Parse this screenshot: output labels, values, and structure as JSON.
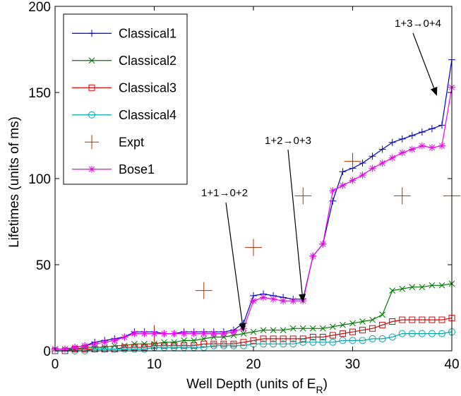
{
  "chart_data": {
    "type": "line",
    "title": "",
    "xlabel_main": "Well Depth (units of E",
    "xlabel_sub": "R",
    "xlabel_end": ")",
    "ylabel": "Lifetimes (units of ms)",
    "xlim": [
      0,
      40
    ],
    "ylim": [
      0,
      200
    ],
    "xticks": [
      "0",
      "10",
      "20",
      "30",
      "40"
    ],
    "yticks": [
      "0",
      "50",
      "100",
      "150",
      "200"
    ],
    "legend_position": "top-left",
    "series": [
      {
        "name": "Classical1",
        "color": "#0000cc",
        "marker": "plus",
        "x": [
          0,
          1,
          2,
          3,
          4,
          5,
          6,
          7,
          8,
          9,
          10,
          11,
          12,
          13,
          14,
          15,
          16,
          17,
          18,
          19,
          20,
          21,
          22,
          23,
          24,
          25,
          26,
          27,
          28,
          29,
          30,
          31,
          32,
          33,
          34,
          35,
          36,
          37,
          38,
          39,
          40
        ],
        "y": [
          1,
          1,
          2,
          3,
          5,
          6,
          7,
          8,
          11,
          11,
          11,
          10,
          10,
          11,
          11,
          11,
          11,
          11,
          12,
          16,
          32,
          33,
          32,
          31,
          30,
          30,
          55,
          62,
          87,
          104,
          106,
          109,
          113,
          117,
          121,
          123,
          125,
          127,
          129,
          131,
          169
        ]
      },
      {
        "name": "Classical2",
        "color": "#007700",
        "marker": "x",
        "x": [
          0,
          1,
          2,
          3,
          4,
          5,
          6,
          7,
          8,
          9,
          10,
          11,
          12,
          13,
          14,
          15,
          16,
          17,
          18,
          19,
          20,
          21,
          22,
          23,
          24,
          25,
          26,
          27,
          28,
          29,
          30,
          31,
          32,
          33,
          34,
          35,
          36,
          37,
          38,
          39,
          40
        ],
        "y": [
          1,
          1,
          1,
          2,
          2,
          2,
          3,
          3,
          4,
          4,
          4,
          5,
          5,
          6,
          6,
          7,
          8,
          8,
          9,
          10,
          11,
          12,
          12,
          12,
          13,
          13,
          13,
          13,
          14,
          15,
          16,
          17,
          18,
          21,
          35,
          36,
          37,
          37,
          38,
          38,
          39
        ]
      },
      {
        "name": "Classical3",
        "color": "#dd0000",
        "marker": "square",
        "x": [
          0,
          1,
          2,
          3,
          4,
          5,
          6,
          7,
          8,
          9,
          10,
          11,
          12,
          13,
          14,
          15,
          16,
          17,
          18,
          19,
          20,
          21,
          22,
          23,
          24,
          25,
          26,
          27,
          28,
          29,
          30,
          31,
          32,
          33,
          34,
          35,
          36,
          37,
          38,
          39,
          40
        ],
        "y": [
          0,
          0,
          1,
          1,
          1,
          1,
          1,
          2,
          2,
          2,
          3,
          3,
          3,
          3,
          3,
          4,
          4,
          4,
          4,
          5,
          6,
          7,
          7,
          7,
          7,
          7,
          8,
          8,
          9,
          10,
          11,
          12,
          13,
          15,
          17,
          18,
          18,
          18,
          18,
          18,
          19
        ]
      },
      {
        "name": "Classical4",
        "color": "#00a8a8",
        "marker": "circle",
        "x": [
          0,
          1,
          2,
          3,
          4,
          5,
          6,
          7,
          8,
          9,
          10,
          11,
          12,
          13,
          14,
          15,
          16,
          17,
          18,
          19,
          20,
          21,
          22,
          23,
          24,
          25,
          26,
          27,
          28,
          29,
          30,
          31,
          32,
          33,
          34,
          35,
          36,
          37,
          38,
          39,
          40
        ],
        "y": [
          0,
          0,
          0,
          0,
          1,
          1,
          1,
          1,
          1,
          1,
          2,
          2,
          2,
          2,
          2,
          2,
          3,
          3,
          3,
          3,
          4,
          4,
          4,
          4,
          4,
          5,
          5,
          5,
          5,
          6,
          6,
          6,
          7,
          7,
          8,
          10,
          10,
          10,
          10,
          10,
          11
        ]
      },
      {
        "name": "Expt",
        "color": "#aa3300",
        "marker": "bigplus",
        "line": false,
        "x": [
          10,
          15,
          20,
          25,
          30,
          35,
          40
        ],
        "y": [
          10,
          35,
          60,
          90,
          110,
          90,
          90
        ]
      },
      {
        "name": "Bose1",
        "color": "#ee00ee",
        "marker": "asterisk",
        "x": [
          0,
          1,
          2,
          3,
          4,
          5,
          6,
          7,
          8,
          9,
          10,
          11,
          12,
          13,
          14,
          15,
          16,
          17,
          18,
          19,
          20,
          21,
          22,
          23,
          24,
          25,
          26,
          27,
          28,
          29,
          30,
          31,
          32,
          33,
          34,
          35,
          36,
          37,
          38,
          39,
          40
        ],
        "y": [
          1,
          1,
          2,
          3,
          4,
          5,
          6,
          8,
          10,
          10,
          10,
          10,
          10,
          10,
          10,
          10,
          10,
          10,
          11,
          13,
          29,
          31,
          30,
          29,
          29,
          29,
          55,
          62,
          93,
          96,
          99,
          102,
          106,
          109,
          112,
          115,
          117,
          119,
          118,
          119,
          153
        ]
      }
    ],
    "annotations": [
      {
        "text": "1+1→0+2",
        "arrow_tip": [
          19,
          11
        ]
      },
      {
        "text": "1+2→0+3",
        "arrow_tip": [
          25,
          28
        ]
      },
      {
        "text": "1+3→0+4",
        "arrow_tip": [
          38.5,
          148
        ]
      }
    ]
  }
}
